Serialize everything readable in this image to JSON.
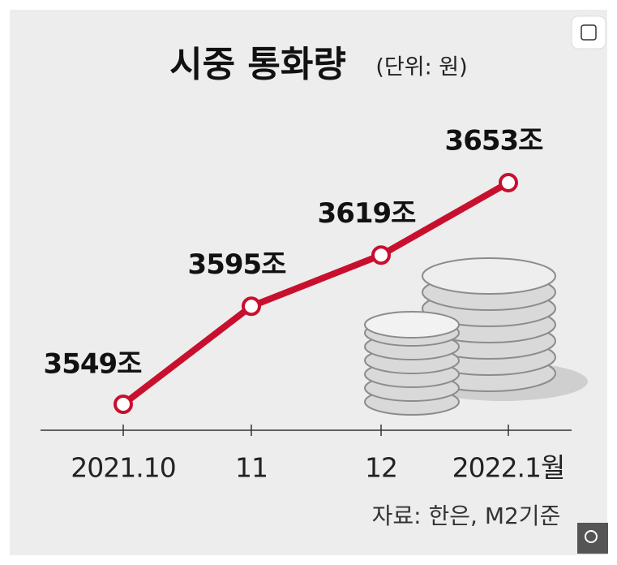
{
  "chart_data": {
    "type": "line",
    "title": "시중 통화량",
    "subtitle": "(단위: 원)",
    "categories": [
      "2021.10",
      "11",
      "12",
      "2022.1월"
    ],
    "series": [
      {
        "name": "통화량",
        "color": "#c8102e",
        "values": [
          3549,
          3595,
          3619,
          3653
        ],
        "value_labels": [
          "3549조",
          "3595조",
          "3619조",
          "3653조"
        ]
      }
    ],
    "source": "자료: 한은, M2기준"
  }
}
